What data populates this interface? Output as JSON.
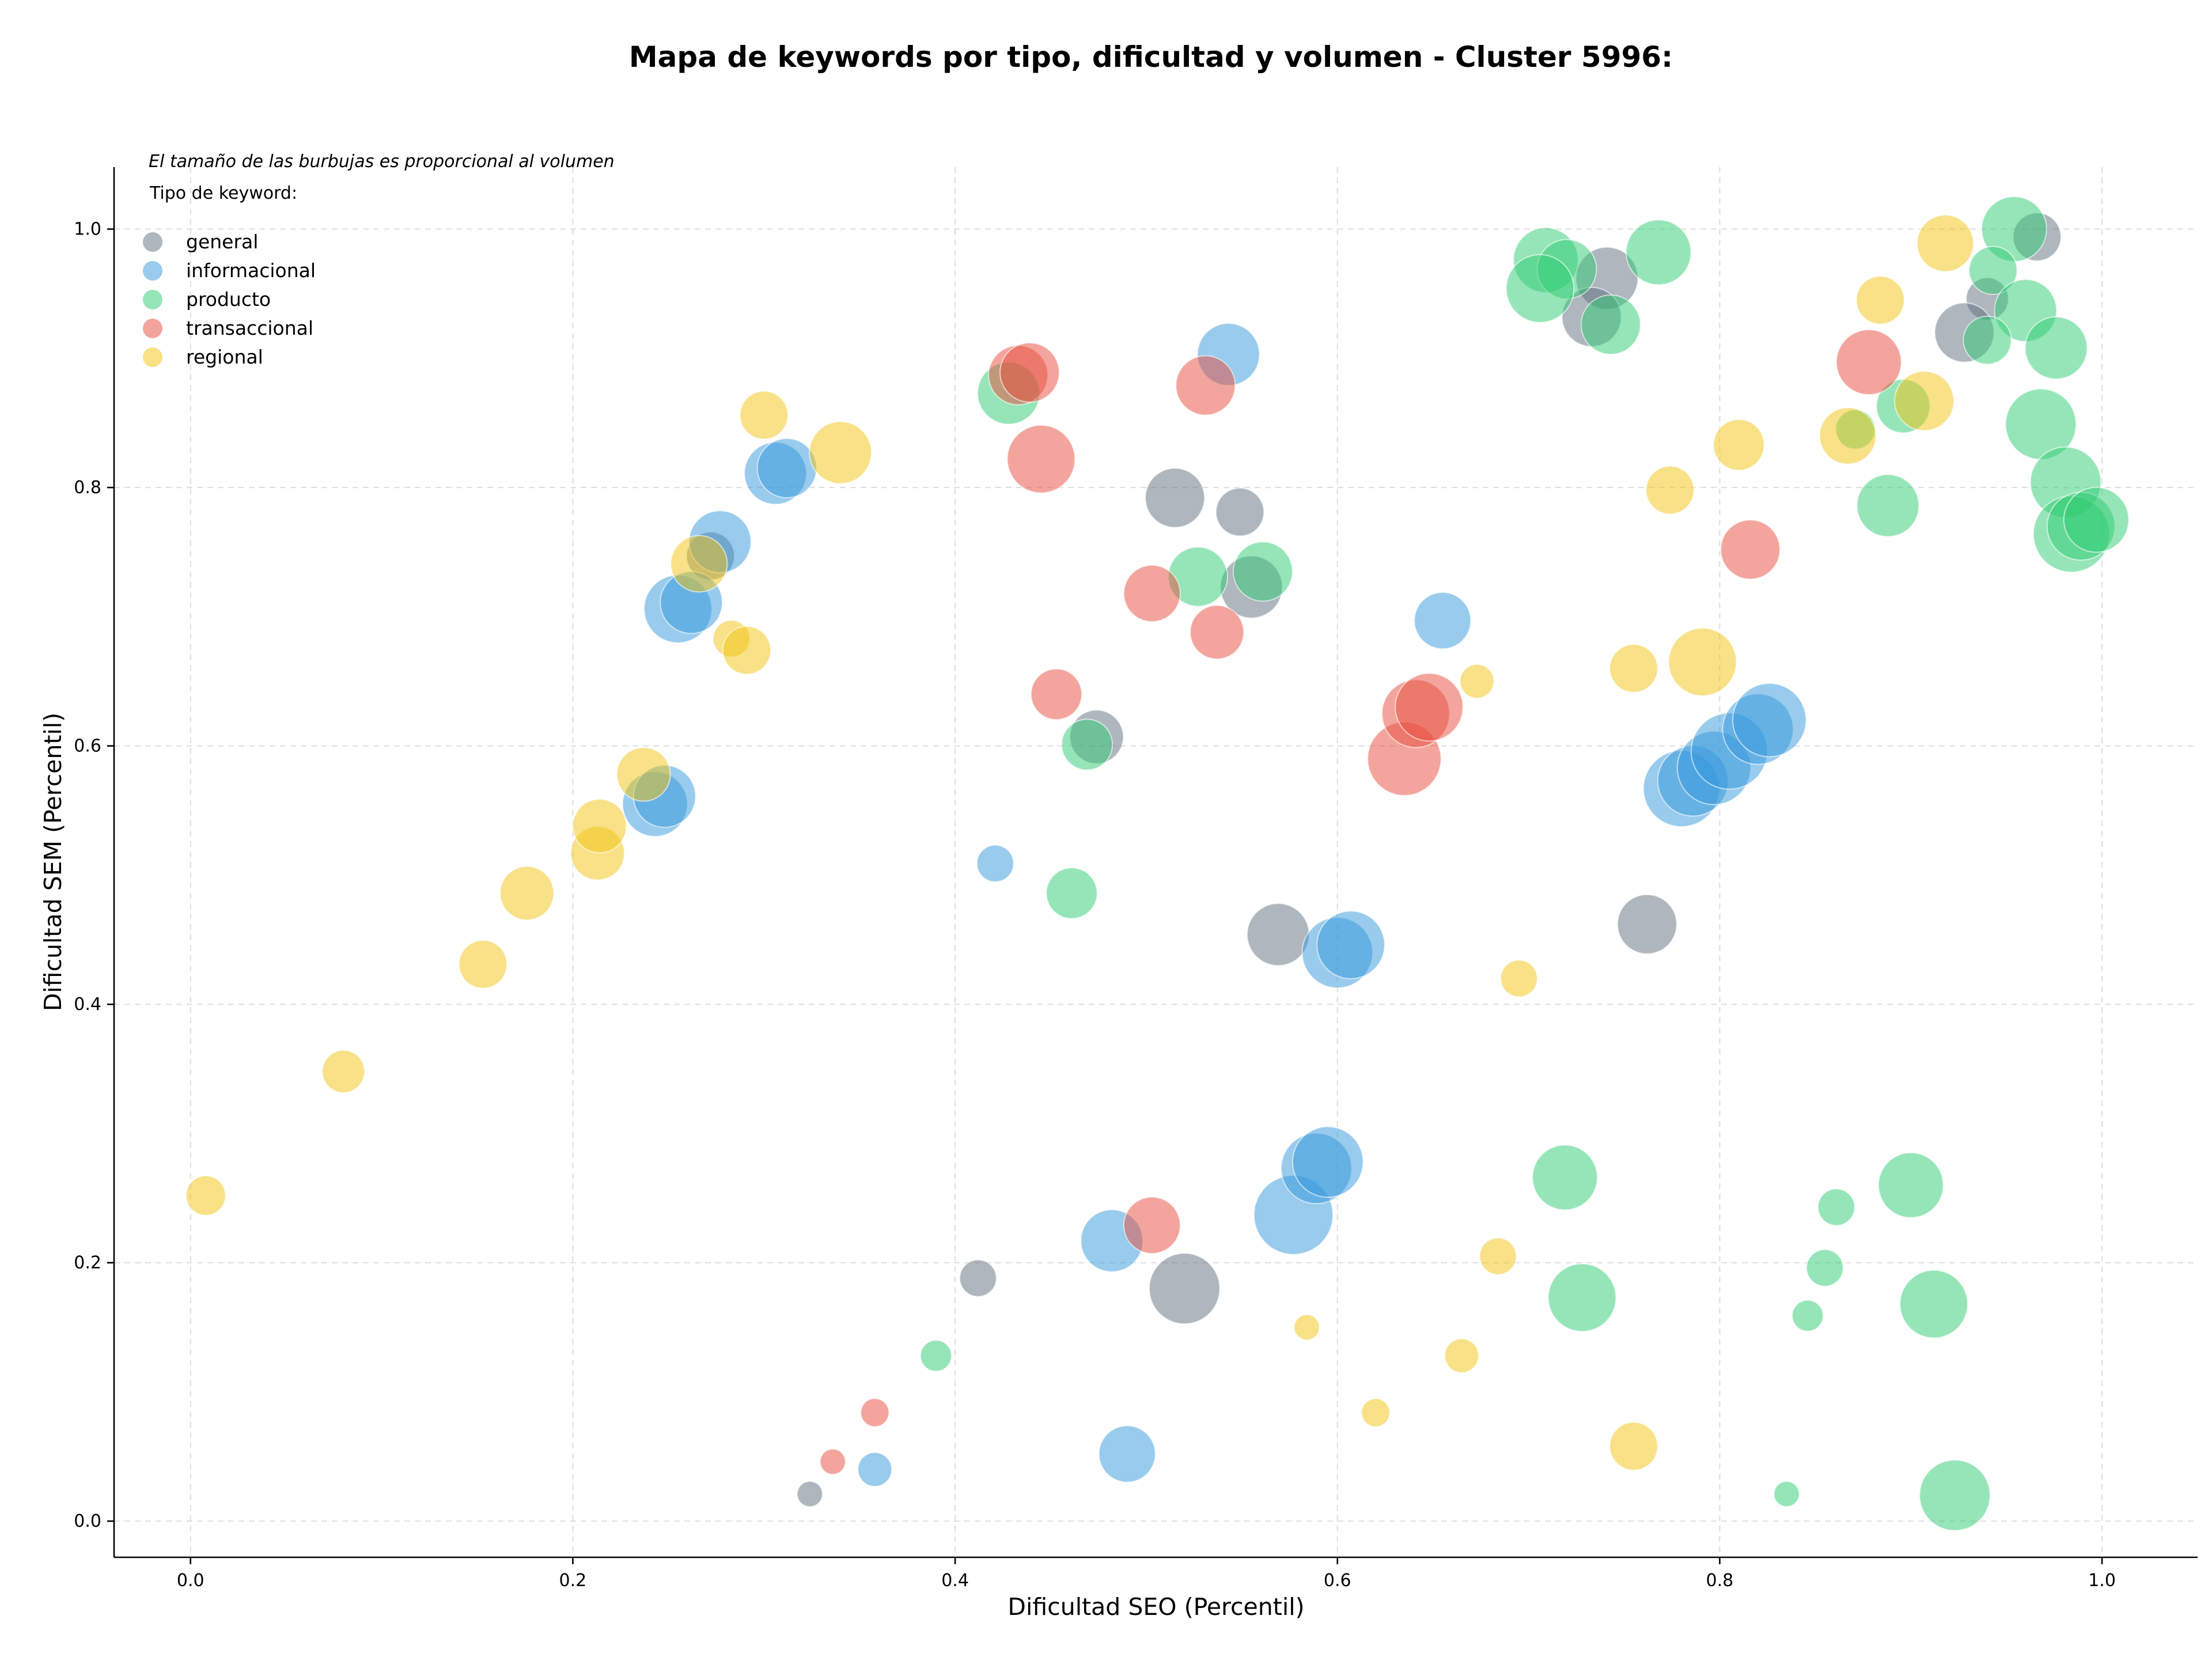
{
  "chart_data": {
    "type": "scatter",
    "title": "Mapa de keywords por tipo, dificultad y volumen - Cluster 5996:",
    "xlabel": "Dificultad SEO (Percentil)",
    "ylabel": "Dificultad SEM (Percentil)",
    "xlim": [
      -0.04,
      1.05
    ],
    "ylim": [
      -0.028,
      1.048
    ],
    "x_ticks": [
      "0.0",
      "0.2",
      "0.4",
      "0.6",
      "0.8",
      "1.0"
    ],
    "y_ticks": [
      "0.0",
      "0.2",
      "0.4",
      "0.6",
      "0.8",
      "1.0"
    ],
    "grid": true,
    "size_note": "El tamaño de las burbujas es proporcional al volumen",
    "legend": {
      "title": "Tipo de keyword:",
      "placement": "top-left",
      "entries": [
        "general",
        "informacional",
        "producto",
        "transaccional",
        "regional"
      ]
    },
    "colors": {
      "general": "#5d6d7e",
      "informacional": "#3498db",
      "producto": "#2ecc71",
      "transaccional": "#e74c3c",
      "regional": "#f1c40f"
    },
    "series": [
      {
        "name": "general",
        "points": [
          {
            "x": 0.966,
            "y": 0.994,
            "r": 17
          },
          {
            "x": 0.94,
            "y": 0.946,
            "r": 15
          },
          {
            "x": 0.928,
            "y": 0.92,
            "r": 21
          },
          {
            "x": 0.741,
            "y": 0.962,
            "r": 22
          },
          {
            "x": 0.733,
            "y": 0.932,
            "r": 21
          },
          {
            "x": 0.515,
            "y": 0.792,
            "r": 21
          },
          {
            "x": 0.549,
            "y": 0.781,
            "r": 17
          },
          {
            "x": 0.555,
            "y": 0.723,
            "r": 22
          },
          {
            "x": 0.474,
            "y": 0.607,
            "r": 19
          },
          {
            "x": 0.569,
            "y": 0.454,
            "r": 22
          },
          {
            "x": 0.762,
            "y": 0.462,
            "r": 21
          },
          {
            "x": 0.52,
            "y": 0.18,
            "r": 25
          },
          {
            "x": 0.412,
            "y": 0.188,
            "r": 13
          },
          {
            "x": 0.324,
            "y": 0.021,
            "r": 9
          },
          {
            "x": 0.272,
            "y": 0.747,
            "r": 17
          }
        ]
      },
      {
        "name": "informacional",
        "points": [
          {
            "x": 0.543,
            "y": 0.903,
            "r": 22
          },
          {
            "x": 0.306,
            "y": 0.811,
            "r": 22
          },
          {
            "x": 0.312,
            "y": 0.815,
            "r": 21
          },
          {
            "x": 0.277,
            "y": 0.758,
            "r": 22
          },
          {
            "x": 0.255,
            "y": 0.706,
            "r": 24
          },
          {
            "x": 0.262,
            "y": 0.711,
            "r": 22
          },
          {
            "x": 0.243,
            "y": 0.555,
            "r": 23
          },
          {
            "x": 0.248,
            "y": 0.561,
            "r": 22
          },
          {
            "x": 0.421,
            "y": 0.509,
            "r": 13
          },
          {
            "x": 0.655,
            "y": 0.697,
            "r": 20
          },
          {
            "x": 0.6,
            "y": 0.44,
            "r": 25
          },
          {
            "x": 0.607,
            "y": 0.446,
            "r": 24
          },
          {
            "x": 0.78,
            "y": 0.567,
            "r": 27
          },
          {
            "x": 0.786,
            "y": 0.573,
            "r": 25
          },
          {
            "x": 0.797,
            "y": 0.583,
            "r": 26
          },
          {
            "x": 0.805,
            "y": 0.596,
            "r": 27
          },
          {
            "x": 0.82,
            "y": 0.613,
            "r": 25
          },
          {
            "x": 0.826,
            "y": 0.62,
            "r": 26
          },
          {
            "x": 0.577,
            "y": 0.237,
            "r": 28
          },
          {
            "x": 0.589,
            "y": 0.273,
            "r": 25
          },
          {
            "x": 0.595,
            "y": 0.278,
            "r": 25
          },
          {
            "x": 0.482,
            "y": 0.217,
            "r": 22
          },
          {
            "x": 0.49,
            "y": 0.052,
            "r": 20
          },
          {
            "x": 0.358,
            "y": 0.04,
            "r": 12
          }
        ]
      },
      {
        "name": "producto",
        "points": [
          {
            "x": 0.954,
            "y": 1.0,
            "r": 23
          },
          {
            "x": 0.943,
            "y": 0.968,
            "r": 17
          },
          {
            "x": 0.96,
            "y": 0.937,
            "r": 22
          },
          {
            "x": 0.94,
            "y": 0.914,
            "r": 17
          },
          {
            "x": 0.976,
            "y": 0.908,
            "r": 22
          },
          {
            "x": 0.968,
            "y": 0.849,
            "r": 25
          },
          {
            "x": 0.981,
            "y": 0.804,
            "r": 25
          },
          {
            "x": 0.984,
            "y": 0.764,
            "r": 27
          },
          {
            "x": 0.989,
            "y": 0.77,
            "r": 24
          },
          {
            "x": 0.997,
            "y": 0.775,
            "r": 23
          },
          {
            "x": 0.896,
            "y": 0.863,
            "r": 19
          },
          {
            "x": 0.871,
            "y": 0.845,
            "r": 14
          },
          {
            "x": 0.888,
            "y": 0.786,
            "r": 22
          },
          {
            "x": 0.768,
            "y": 0.982,
            "r": 23
          },
          {
            "x": 0.709,
            "y": 0.976,
            "r": 23
          },
          {
            "x": 0.72,
            "y": 0.969,
            "r": 21
          },
          {
            "x": 0.706,
            "y": 0.954,
            "r": 24
          },
          {
            "x": 0.743,
            "y": 0.926,
            "r": 21
          },
          {
            "x": 0.428,
            "y": 0.873,
            "r": 22
          },
          {
            "x": 0.527,
            "y": 0.731,
            "r": 21
          },
          {
            "x": 0.561,
            "y": 0.735,
            "r": 21
          },
          {
            "x": 0.469,
            "y": 0.601,
            "r": 18
          },
          {
            "x": 0.461,
            "y": 0.486,
            "r": 18
          },
          {
            "x": 0.719,
            "y": 0.266,
            "r": 23
          },
          {
            "x": 0.728,
            "y": 0.173,
            "r": 24
          },
          {
            "x": 0.9,
            "y": 0.26,
            "r": 23
          },
          {
            "x": 0.912,
            "y": 0.168,
            "r": 24
          },
          {
            "x": 0.861,
            "y": 0.243,
            "r": 13
          },
          {
            "x": 0.855,
            "y": 0.196,
            "r": 13
          },
          {
            "x": 0.846,
            "y": 0.159,
            "r": 11
          },
          {
            "x": 0.923,
            "y": 0.02,
            "r": 25
          },
          {
            "x": 0.835,
            "y": 0.021,
            "r": 9
          },
          {
            "x": 0.39,
            "y": 0.128,
            "r": 11
          }
        ]
      },
      {
        "name": "transaccional",
        "points": [
          {
            "x": 0.433,
            "y": 0.887,
            "r": 21
          },
          {
            "x": 0.439,
            "y": 0.889,
            "r": 21
          },
          {
            "x": 0.445,
            "y": 0.822,
            "r": 24
          },
          {
            "x": 0.531,
            "y": 0.879,
            "r": 21
          },
          {
            "x": 0.503,
            "y": 0.718,
            "r": 20
          },
          {
            "x": 0.537,
            "y": 0.688,
            "r": 19
          },
          {
            "x": 0.453,
            "y": 0.64,
            "r": 18
          },
          {
            "x": 0.635,
            "y": 0.59,
            "r": 26
          },
          {
            "x": 0.641,
            "y": 0.625,
            "r": 24
          },
          {
            "x": 0.648,
            "y": 0.63,
            "r": 24
          },
          {
            "x": 0.816,
            "y": 0.752,
            "r": 21
          },
          {
            "x": 0.878,
            "y": 0.897,
            "r": 23
          },
          {
            "x": 0.503,
            "y": 0.229,
            "r": 20
          },
          {
            "x": 0.358,
            "y": 0.084,
            "r": 10
          },
          {
            "x": 0.336,
            "y": 0.046,
            "r": 9
          }
        ]
      },
      {
        "name": "regional",
        "points": [
          {
            "x": 0.918,
            "y": 0.989,
            "r": 20
          },
          {
            "x": 0.884,
            "y": 0.945,
            "r": 17
          },
          {
            "x": 0.907,
            "y": 0.867,
            "r": 21
          },
          {
            "x": 0.867,
            "y": 0.84,
            "r": 20
          },
          {
            "x": 0.81,
            "y": 0.833,
            "r": 18
          },
          {
            "x": 0.774,
            "y": 0.798,
            "r": 17
          },
          {
            "x": 0.791,
            "y": 0.665,
            "r": 24
          },
          {
            "x": 0.755,
            "y": 0.66,
            "r": 17
          },
          {
            "x": 0.673,
            "y": 0.65,
            "r": 12
          },
          {
            "x": 0.695,
            "y": 0.42,
            "r": 13
          },
          {
            "x": 0.684,
            "y": 0.205,
            "r": 13
          },
          {
            "x": 0.665,
            "y": 0.128,
            "r": 12
          },
          {
            "x": 0.62,
            "y": 0.084,
            "r": 10
          },
          {
            "x": 0.584,
            "y": 0.15,
            "r": 9
          },
          {
            "x": 0.755,
            "y": 0.058,
            "r": 17
          },
          {
            "x": 0.34,
            "y": 0.827,
            "r": 22
          },
          {
            "x": 0.3,
            "y": 0.856,
            "r": 17
          },
          {
            "x": 0.266,
            "y": 0.741,
            "r": 20
          },
          {
            "x": 0.283,
            "y": 0.683,
            "r": 13
          },
          {
            "x": 0.291,
            "y": 0.674,
            "r": 17
          },
          {
            "x": 0.237,
            "y": 0.578,
            "r": 19
          },
          {
            "x": 0.213,
            "y": 0.517,
            "r": 19
          },
          {
            "x": 0.214,
            "y": 0.538,
            "r": 19
          },
          {
            "x": 0.176,
            "y": 0.486,
            "r": 19
          },
          {
            "x": 0.153,
            "y": 0.431,
            "r": 17
          },
          {
            "x": 0.08,
            "y": 0.348,
            "r": 15
          },
          {
            "x": 0.008,
            "y": 0.252,
            "r": 14
          }
        ]
      }
    ]
  }
}
